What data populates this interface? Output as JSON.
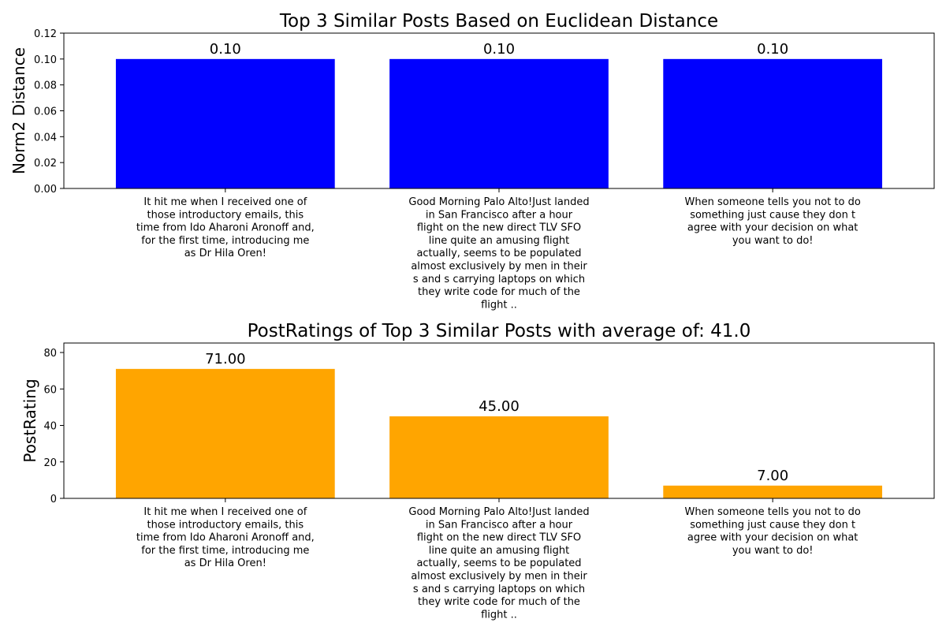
{
  "chart_data": [
    {
      "type": "bar",
      "title": "Top 3 Similar Posts Based on Euclidean Distance",
      "xlabel": "",
      "ylabel": "Norm2 Distance",
      "categories": [
        "It hit me when I received one of those introductory emails, this time from Ido Aharoni Aronoff and, for the first time, introducing me as Dr Hila Oren!",
        "Good Morning Palo Alto!Just landed in San Francisco after a hour flight on the new direct TLV SFO line quite an amusing flight actually, seems to be populated almost exclusively by men in their s and s carrying laptops on which they write code for much of the flight ..",
        "When someone tells you not to do something just cause they don t agree with your decision on what you want to do!"
      ],
      "category_lines": [
        [
          "It hit me when I received one of",
          "those introductory emails, this",
          "time from Ido Aharoni Aronoff and,",
          "for the first time, introducing me",
          "as Dr Hila Oren!"
        ],
        [
          "Good Morning Palo Alto!Just landed",
          "in San Francisco after a hour",
          "flight on the new direct TLV SFO",
          "line quite an amusing flight",
          "actually, seems to be populated",
          "almost exclusively by men in their",
          "s and s carrying laptops on which",
          "they write code for much of the",
          "flight .."
        ],
        [
          "When someone tells you not to do",
          "something just cause they don t",
          "agree with your decision on what",
          "you want to do!"
        ]
      ],
      "values": [
        0.1,
        0.1,
        0.1
      ],
      "data_labels": [
        "0.10",
        "0.10",
        "0.10"
      ],
      "ylim": [
        0,
        0.12
      ],
      "yticks": [
        0.0,
        0.02,
        0.04,
        0.06,
        0.08,
        0.1,
        0.12
      ],
      "ytick_labels": [
        "0.00",
        "0.02",
        "0.04",
        "0.06",
        "0.08",
        "0.10",
        "0.12"
      ],
      "color": "#0000ff",
      "grid": false
    },
    {
      "type": "bar",
      "title": "PostRatings of Top 3 Similar Posts with average of: 41.0",
      "xlabel": "",
      "ylabel": "PostRating",
      "categories": [
        "It hit me when I received one of those introductory emails, this time from Ido Aharoni Aronoff and, for the first time, introducing me as Dr Hila Oren!",
        "Good Morning Palo Alto!Just landed in San Francisco after a hour flight on the new direct TLV SFO line quite an amusing flight actually, seems to be populated almost exclusively by men in their s and s carrying laptops on which they write code for much of the flight ..",
        "When someone tells you not to do something just cause they don t agree with your decision on what you want to do!"
      ],
      "category_lines": [
        [
          "It hit me when I received one of",
          "those introductory emails, this",
          "time from Ido Aharoni Aronoff and,",
          "for the first time, introducing me",
          "as Dr Hila Oren!"
        ],
        [
          "Good Morning Palo Alto!Just landed",
          "in San Francisco after a hour",
          "flight on the new direct TLV SFO",
          "line quite an amusing flight",
          "actually, seems to be populated",
          "almost exclusively by men in their",
          "s and s carrying laptops on which",
          "they write code for much of the",
          "flight .."
        ],
        [
          "When someone tells you not to do",
          "something just cause they don t",
          "agree with your decision on what",
          "you want to do!"
        ]
      ],
      "values": [
        71.0,
        45.0,
        7.0
      ],
      "data_labels": [
        "71.00",
        "45.00",
        "7.00"
      ],
      "ylim": [
        0,
        85.2
      ],
      "yticks": [
        0,
        20,
        40,
        60,
        80
      ],
      "ytick_labels": [
        "0",
        "20",
        "40",
        "60",
        "80"
      ],
      "color": "#ffa500",
      "grid": false
    }
  ]
}
